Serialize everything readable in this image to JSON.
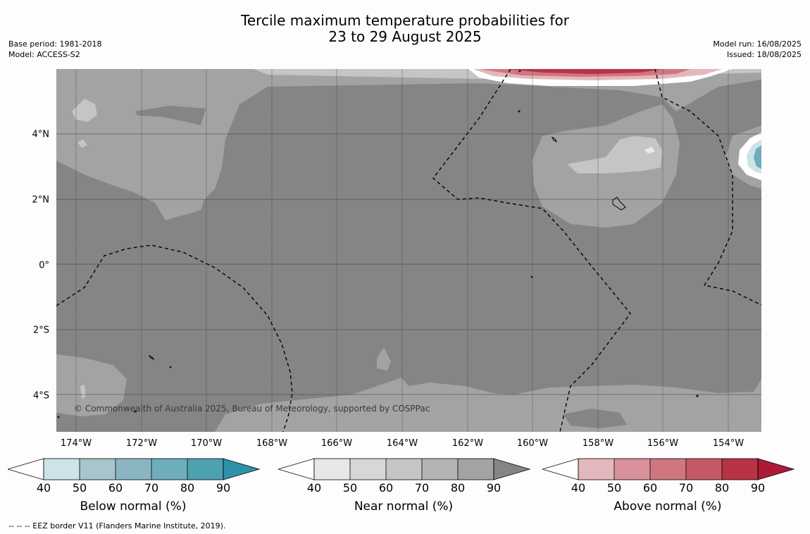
{
  "title": {
    "line1": "Tercile maximum temperature probabilities for",
    "line2": "23 to 29 August 2025"
  },
  "meta": {
    "base_period": "Base period: 1981-2018",
    "model": "Model: ACCESS-S2",
    "model_run": "Model run: 16/08/2025",
    "issued": "Issued: 18/08/2025"
  },
  "map": {
    "copyright": "© Commonwealth of Australia 2025, Bureau of Meteorology, supported by COSPPac",
    "lat_labels": [
      "4°N",
      "2°N",
      "0°",
      "2°S",
      "4°S"
    ],
    "lon_labels": [
      "174°W",
      "172°W",
      "170°W",
      "168°W",
      "166°W",
      "164°W",
      "162°W",
      "160°W",
      "158°W",
      "156°W",
      "154°W"
    ]
  },
  "colorbars": [
    {
      "label": "Below normal (%)",
      "ticks": [
        "40",
        "50",
        "60",
        "70",
        "80",
        "90"
      ],
      "colors": [
        "#cde3e8",
        "#a7c6cc",
        "#8ab6c3",
        "#6eadbb",
        "#4ea1b1",
        "#2f91a8"
      ]
    },
    {
      "label": "Near normal (%)",
      "ticks": [
        "40",
        "50",
        "60",
        "70",
        "80",
        "90"
      ],
      "colors": [
        "#e7e7e7",
        "#d7d7d7",
        "#c5c5c5",
        "#b4b4b4",
        "#a3a3a3",
        "#858585"
      ]
    },
    {
      "label": "Above normal (%)",
      "ticks": [
        "40",
        "50",
        "60",
        "70",
        "80",
        "90"
      ],
      "colors": [
        "#e3b8bd",
        "#d9919b",
        "#cf7680",
        "#c55a66",
        "#b93246",
        "#ad1a38"
      ]
    }
  ],
  "footnote": "--  --  -- EEZ border V11 (Flanders Marine Institute, 2019)."
}
